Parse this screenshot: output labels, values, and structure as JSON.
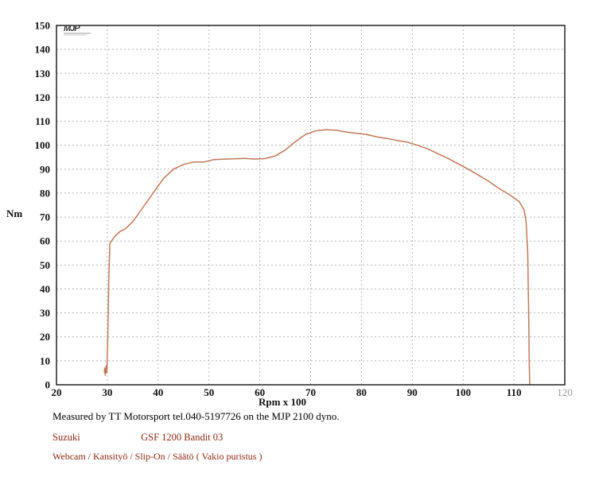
{
  "chart_data": {
    "type": "line",
    "xlabel": "Rpm x 100",
    "ylabel": "Nm",
    "xlim": [
      20,
      120
    ],
    "ylim": [
      0,
      150
    ],
    "x_ticks": [
      "20",
      "30",
      "40",
      "50",
      "60",
      "70",
      "80",
      "90",
      "100",
      "110",
      "120"
    ],
    "y_ticks": [
      "0",
      "10",
      "20",
      "30",
      "40",
      "50",
      "60",
      "70",
      "80",
      "90",
      "100",
      "110",
      "120",
      "130",
      "140",
      "150"
    ],
    "grid": true,
    "series": [
      {
        "color": "#c0785a",
        "x": [
          29.4,
          29.5,
          29.6,
          29.7,
          29.8,
          29.9,
          30.1,
          30.3,
          30.5,
          30.8,
          31.5,
          32.5,
          33.5,
          35,
          37,
          39,
          41,
          43,
          45,
          47,
          49,
          51,
          53,
          55,
          57,
          59,
          61,
          63,
          65,
          67,
          69,
          71,
          73,
          75,
          77,
          79,
          81,
          83,
          85,
          87,
          89,
          91,
          93,
          95,
          97,
          99,
          101,
          103,
          105,
          107,
          109,
          111,
          112,
          112.4,
          112.7,
          112.9,
          113.0,
          113.1
        ],
        "y": [
          5,
          7,
          4,
          6,
          8,
          5,
          20,
          45,
          59,
          60,
          62,
          64,
          65,
          68,
          74,
          80,
          86,
          90,
          92,
          93,
          93,
          94,
          94.2,
          94.3,
          94.5,
          94.2,
          94.4,
          95.5,
          98,
          101.5,
          104.5,
          106,
          106.5,
          106.3,
          105.5,
          105,
          104.5,
          103.5,
          102.8,
          102,
          101.3,
          100,
          98.5,
          96.5,
          94.5,
          92.3,
          90,
          87.5,
          85,
          82,
          79.5,
          76.5,
          73,
          68,
          55,
          30,
          10,
          0
        ]
      }
    ]
  },
  "logo_text": "MJP",
  "captions": {
    "measured_by": "Measured by TT Motorsport tel.040-5197726 on the MJP 2100 dyno.",
    "make": "Suzuki",
    "model": "GSF 1200 Bandit 03",
    "setup": "Webcam / Kansityö / Slip-On / Säätö ( Vakio puristus )"
  }
}
